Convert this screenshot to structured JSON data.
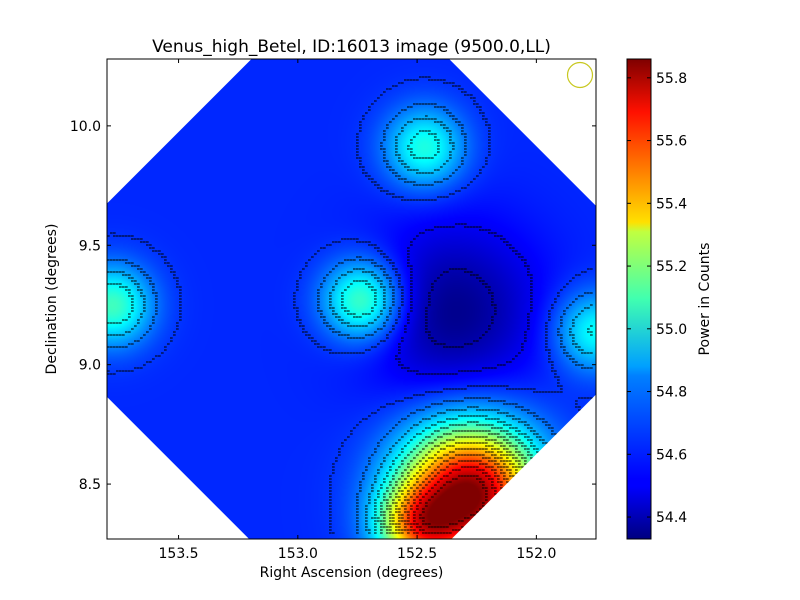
{
  "chart_data": {
    "type": "heatmap",
    "title": "Venus_high_Betel, ID:16013 image (9500.0,LL)",
    "xlabel": "Right Ascension (degrees)",
    "ylabel": "Declination (degrees)",
    "xlim": [
      153.8,
      151.75
    ],
    "ylim": [
      8.27,
      10.28
    ],
    "xticks": [
      153.5,
      153.0,
      152.5,
      152.0
    ],
    "xtick_labels": [
      "153.5",
      "153.0",
      "152.5",
      "152.0"
    ],
    "yticks": [
      8.5,
      9.0,
      9.5,
      10.0
    ],
    "ytick_labels": [
      "8.5",
      "9.0",
      "9.5",
      "10.0"
    ],
    "colorbar": {
      "label": "Power in Counts",
      "range": [
        54.33,
        55.86
      ],
      "ticks": [
        54.4,
        54.6,
        54.8,
        55.0,
        55.2,
        55.4,
        55.6,
        55.8
      ],
      "tick_labels": [
        "54.4",
        "54.6",
        "54.8",
        "55.0",
        "55.2",
        "55.4",
        "55.6",
        "55.8"
      ],
      "colormap": "jet"
    },
    "footprint_center": [
      152.78,
      9.27
    ],
    "background_level": 54.58,
    "features": [
      {
        "kind": "peak",
        "ra": 152.28,
        "dec": 8.46,
        "value": 55.86
      },
      {
        "kind": "peak",
        "ra": 152.5,
        "dec": 8.32,
        "value": 55.15
      },
      {
        "kind": "peak",
        "ra": 152.47,
        "dec": 9.91,
        "value": 54.95
      },
      {
        "kind": "peak",
        "ra": 152.73,
        "dec": 9.27,
        "value": 55.05
      },
      {
        "kind": "peak",
        "ra": 153.78,
        "dec": 9.25,
        "value": 55.0
      },
      {
        "kind": "peak",
        "ra": 151.76,
        "dec": 9.14,
        "value": 54.92
      },
      {
        "kind": "trough",
        "ra": 152.35,
        "dec": 9.22,
        "value": 54.35
      }
    ],
    "grid": false
  },
  "colors": {
    "beam_circle": "#c8c820",
    "contour": "#000000"
  }
}
